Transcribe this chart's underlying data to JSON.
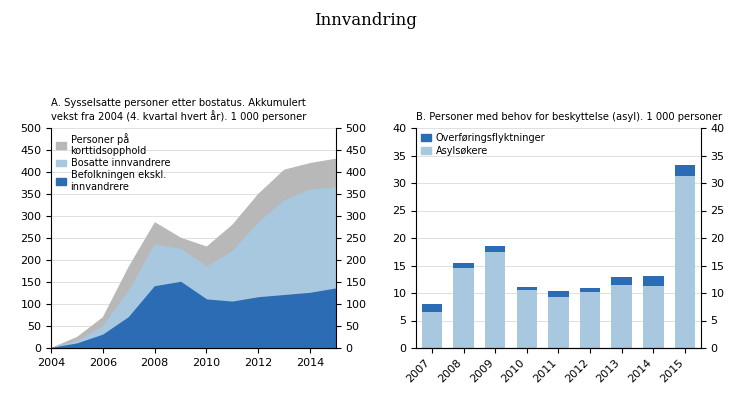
{
  "title": "Innvandring",
  "panel_a_title": "A. Sysselsatte personer etter bostatus. Akkumulert\nvekst fra 2004 (4. kvartal hvert år). 1 000 personer",
  "panel_b_title": "B. Personer med behov for beskyttelse (asyl). 1 000 personer",
  "panel_a": {
    "years": [
      2004,
      2005,
      2006,
      2007,
      2008,
      2009,
      2010,
      2011,
      2012,
      2013,
      2014,
      2015
    ],
    "befolkning": [
      0,
      10,
      30,
      70,
      140,
      150,
      110,
      105,
      115,
      120,
      125,
      135
    ],
    "bosatte": [
      0,
      5,
      20,
      60,
      95,
      75,
      75,
      115,
      170,
      215,
      235,
      230
    ],
    "korttid": [
      0,
      10,
      20,
      55,
      50,
      25,
      45,
      60,
      65,
      70,
      60,
      65
    ],
    "ylim": [
      0,
      500
    ],
    "yticks": [
      0,
      50,
      100,
      150,
      200,
      250,
      300,
      350,
      400,
      450,
      500
    ],
    "color_befolkning": "#2b6cb5",
    "color_bosatte": "#a8c8e0",
    "color_korttid": "#b8b8b8"
  },
  "panel_b": {
    "years": [
      2007,
      2008,
      2009,
      2010,
      2011,
      2012,
      2013,
      2014,
      2015
    ],
    "asylsokere": [
      6.5,
      14.5,
      17.5,
      10.5,
      9.3,
      10.2,
      11.5,
      11.3,
      31.2
    ],
    "overforing": [
      1.5,
      1.0,
      1.0,
      0.6,
      1.0,
      0.8,
      1.5,
      1.8,
      2.0
    ],
    "ylim": [
      0,
      40
    ],
    "yticks": [
      0,
      5,
      10,
      15,
      20,
      25,
      30,
      35,
      40
    ],
    "color_overforing": "#2b6cb5",
    "color_asylsokere": "#a8c8e0"
  },
  "legend_a": {
    "labels": [
      "Personer på\nkorttidsopphold",
      "Bosatte innvandrere",
      "Befolkningen ekskl.\ninnvandrere"
    ],
    "colors": [
      "#b8b8b8",
      "#a8c8e0",
      "#2b6cb5"
    ]
  },
  "legend_b": {
    "labels": [
      "Overføringsflyktninger",
      "Asylsøkere"
    ],
    "colors": [
      "#2b6cb5",
      "#a8c8e0"
    ]
  }
}
